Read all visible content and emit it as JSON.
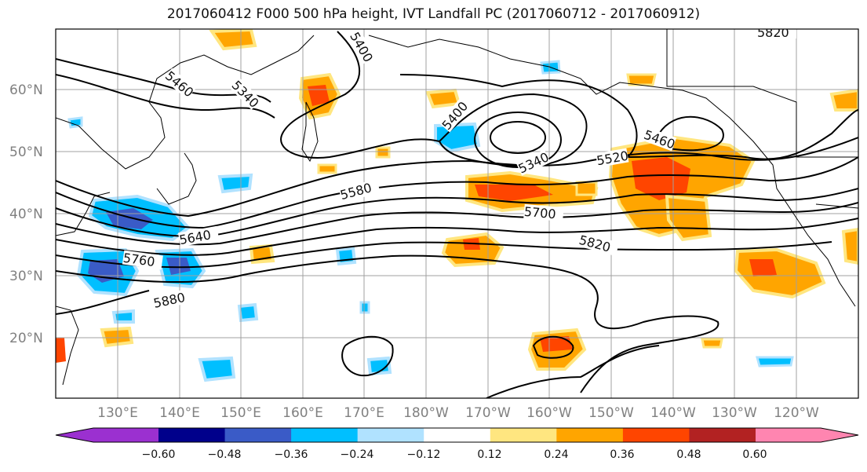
{
  "title": "2017060412 F000 500 hPa height, IVT Landfall PC (2017060712 - 2017060912)",
  "map": {
    "lat_labels": [
      "60°N",
      "50°N",
      "40°N",
      "30°N",
      "20°N"
    ],
    "lon_labels": [
      "130°E",
      "140°E",
      "150°E",
      "160°E",
      "170°E",
      "180°W",
      "170°W",
      "160°W",
      "150°W",
      "140°W",
      "130°W",
      "120°W"
    ],
    "gridlines": true,
    "contour_field": "500 hPa height",
    "contour_labels": [
      "5400",
      "5460",
      "5340",
      "5400",
      "5340",
      "5520",
      "5460",
      "5580",
      "5700",
      "5640",
      "5760",
      "5820",
      "5880",
      "5820"
    ],
    "shaded_field": "IVT Landfall PC"
  },
  "colorbar": {
    "tick_labels": [
      "−0.60",
      "−0.48",
      "−0.36",
      "−0.24",
      "−0.12",
      "0.12",
      "0.24",
      "0.36",
      "0.48",
      "0.60"
    ],
    "colors": [
      "#9b30d0",
      "#00008b",
      "#3a5bc7",
      "#00bfff",
      "#b0e2ff",
      "#ffffff",
      "#ffe680",
      "#ffa500",
      "#ff4500",
      "#b22222",
      "#ff85b0"
    ],
    "extend": "both"
  }
}
